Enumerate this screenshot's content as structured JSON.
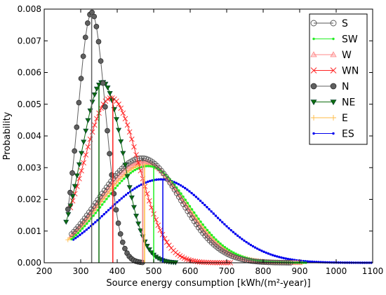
{
  "chart_data": {
    "type": "line",
    "title": "",
    "xlabel": "Source energy consumption [kWh/(m²-year)]",
    "ylabel": "Probability",
    "xlim": [
      200,
      1100
    ],
    "ylim": [
      0,
      0.008
    ],
    "x_ticks": [
      200,
      300,
      400,
      500,
      600,
      700,
      800,
      900,
      1000,
      1100
    ],
    "x_tick_labels": [
      "200",
      "300",
      "400",
      "500",
      "600",
      "700",
      "800",
      "900",
      "1000",
      "1100"
    ],
    "y_ticks": [
      0,
      0.001,
      0.002,
      0.003,
      0.004,
      0.005,
      0.006,
      0.007,
      0.008
    ],
    "y_tick_labels": [
      "0.000",
      "0.001",
      "0.002",
      "0.003",
      "0.004",
      "0.005",
      "0.006",
      "0.007",
      "0.008"
    ],
    "grid": false,
    "legend_position": "top-right",
    "series": [
      {
        "name": "S",
        "color": "#555555",
        "marker": "open-circle",
        "x_start": 275,
        "x_end": 880,
        "peak_x": 468,
        "peak_y": 0.0033,
        "sigma_left": 120,
        "sigma_right": 105,
        "median_line_x": 470
      },
      {
        "name": "SW",
        "color": "#22ee22",
        "marker": "point",
        "x_start": 275,
        "x_end": 920,
        "peak_x": 485,
        "peak_y": 0.00305,
        "sigma_left": 125,
        "sigma_right": 110,
        "median_line_x": 500
      },
      {
        "name": "W",
        "color": "#ff8888",
        "marker": "triangle-up",
        "x_start": 275,
        "x_end": 900,
        "peak_x": 472,
        "peak_y": 0.0032,
        "sigma_left": 122,
        "sigma_right": 108,
        "median_line_x": 470
      },
      {
        "name": "WN",
        "color": "#ff2222",
        "marker": "x",
        "x_start": 272,
        "x_end": 710,
        "peak_x": 383,
        "peak_y": 0.0052,
        "sigma_left": 75,
        "sigma_right": 75,
        "median_line_x": 388
      },
      {
        "name": "N",
        "color": "#606060",
        "marker": "filled-circle",
        "x_start": 265,
        "x_end": 470,
        "peak_x": 330,
        "peak_y": 0.0079,
        "sigma_left": 37,
        "sigma_right": 38,
        "median_line_x": 330
      },
      {
        "name": "NE",
        "color": "#0e6e0e",
        "marker": "triangle-down",
        "x_start": 260,
        "x_end": 560,
        "peak_x": 360,
        "peak_y": 0.0057,
        "sigma_left": 58,
        "sigma_right": 56,
        "median_line_x": 350
      },
      {
        "name": "E",
        "color": "#ffbb44",
        "marker": "plus",
        "x_start": 265,
        "x_end": 910,
        "peak_x": 478,
        "peak_y": 0.0031,
        "sigma_left": 125,
        "sigma_right": 110,
        "median_line_x": 475
      },
      {
        "name": "ES",
        "color": "#0000ee",
        "marker": "point",
        "x_start": 280,
        "x_end": 1100,
        "peak_x": 520,
        "peak_y": 0.00263,
        "sigma_left": 150,
        "sigma_right": 140,
        "median_line_x": 525
      }
    ]
  }
}
